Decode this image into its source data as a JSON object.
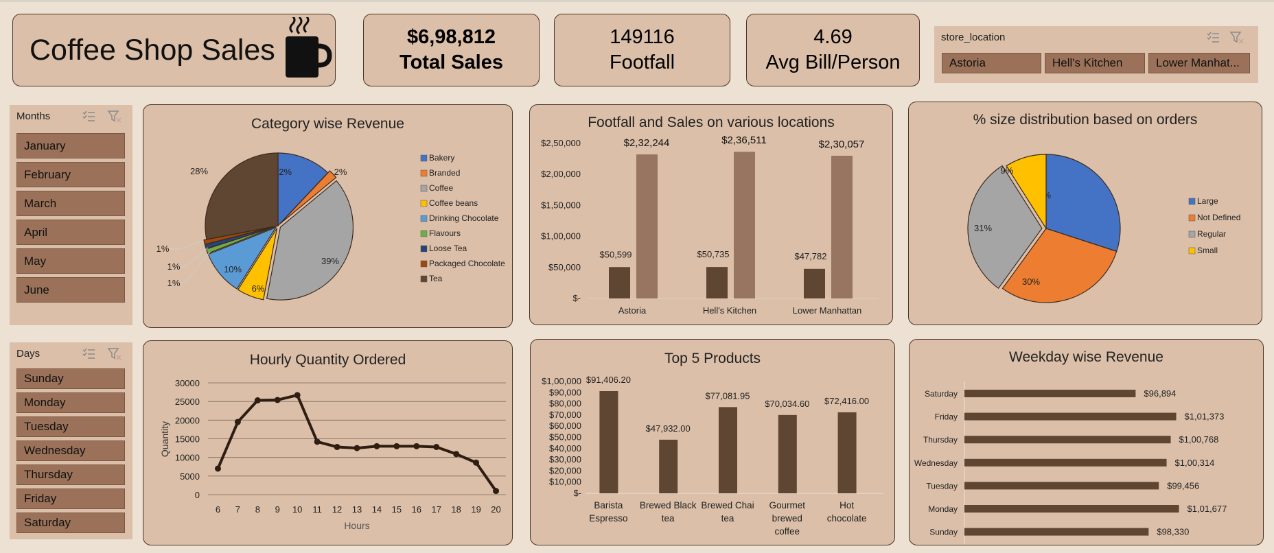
{
  "title_box": {
    "title": "Coffee Shop Sales"
  },
  "kpis": [
    {
      "value": "$6,98,812",
      "label": "Total Sales"
    },
    {
      "value": "149116",
      "label": "Footfall"
    },
    {
      "value": "4.69",
      "label": "Avg Bill/Person"
    }
  ],
  "store_slicer": {
    "title": "store_location",
    "items": [
      "Astoria",
      "Hell's Kitchen",
      "Lower Manhat..."
    ]
  },
  "months_slicer": {
    "title": "Months",
    "items": [
      "January",
      "February",
      "March",
      "April",
      "May",
      "June"
    ]
  },
  "days_slicer": {
    "title": "Days",
    "items": [
      "Sunday",
      "Monday",
      "Tuesday",
      "Wednesday",
      "Thursday",
      "Friday",
      "Saturday"
    ]
  },
  "colors": {
    "background": "#ece1d2",
    "panel": "#dbbfa8",
    "slicer_button": "#9b7259",
    "dark_bar": "#5f4632",
    "light_bar": "#977560",
    "line": "#2e1d10"
  },
  "chart_data": [
    {
      "type": "pie",
      "title": "Category wise Revenue",
      "categories": [
        "Bakery",
        "Branded",
        "Coffee",
        "Coffee beans",
        "Drinking Chocolate",
        "Flavours",
        "Loose Tea",
        "Packaged Chocolate",
        "Tea"
      ],
      "values": [
        12,
        2,
        39,
        6,
        10,
        1,
        1,
        1,
        28
      ],
      "labels": [
        "12%",
        "2%",
        "39%",
        "6%",
        "10%",
        "1%",
        "1%",
        "1%",
        "28%"
      ],
      "colors": [
        "#4472c4",
        "#ed7d31",
        "#a5a5a5",
        "#ffc000",
        "#5b9bd5",
        "#70ad47",
        "#264478",
        "#9e480e",
        "#5f4632"
      ],
      "legend": "right"
    },
    {
      "type": "bar",
      "title": "Footfall and Sales on various locations",
      "categories": [
        "Astoria",
        "Hell's Kitchen",
        "Lower Manhattan"
      ],
      "series": [
        {
          "values": [
            50599,
            50735,
            47782
          ],
          "labels": [
            "$50,599",
            "$50,735",
            "$47,782"
          ]
        },
        {
          "values": [
            232244,
            236511,
            230057
          ],
          "labels": [
            "$2,32,244",
            "$2,36,511",
            "$2,30,057"
          ]
        }
      ],
      "ylim": [
        0,
        250000
      ],
      "yticks": [
        "$2,50,000",
        "$2,00,000",
        "$1,50,000",
        "$1,00,000",
        "$50,000",
        "$-"
      ]
    },
    {
      "type": "pie",
      "title": "% size distribution based on orders",
      "categories": [
        "Large",
        "Not Defined",
        "Regular",
        "Small"
      ],
      "values": [
        30,
        30,
        31,
        9
      ],
      "labels": [
        "30%",
        "30%",
        "31%",
        "9%"
      ],
      "colors": [
        "#4472c4",
        "#ed7d31",
        "#a5a5a5",
        "#ffc000"
      ],
      "legend": "right"
    },
    {
      "type": "line",
      "title": "Hourly Quantity Ordered",
      "x": [
        6,
        7,
        8,
        9,
        10,
        11,
        12,
        13,
        14,
        15,
        16,
        17,
        18,
        19,
        20
      ],
      "y": [
        7000,
        19500,
        25300,
        25400,
        26700,
        14200,
        12800,
        12500,
        13000,
        13000,
        13000,
        12800,
        10900,
        8600,
        1000
      ],
      "xlabel": "Hours",
      "ylabel": "Quantity",
      "ylim": [
        0,
        30000
      ],
      "yticks": [
        "30000",
        "25000",
        "20000",
        "15000",
        "10000",
        "5000",
        "0"
      ],
      "grid": true
    },
    {
      "type": "bar",
      "title": "Top 5 Products",
      "categories": [
        [
          "Barista",
          "Espresso"
        ],
        [
          "Brewed Black",
          "tea"
        ],
        [
          "Brewed Chai",
          "tea"
        ],
        [
          "Gourmet",
          "brewed",
          "coffee"
        ],
        [
          "Hot",
          "chocolate"
        ]
      ],
      "values": [
        91406.2,
        47932.0,
        77081.95,
        70034.6,
        72416.0
      ],
      "labels": [
        "$91,406.20",
        "$47,932.00",
        "$77,081.95",
        "$70,034.60",
        "$72,416.00"
      ],
      "ylim": [
        0,
        100000
      ],
      "yticks": [
        "$1,00,000",
        "$90,000",
        "$80,000",
        "$70,000",
        "$60,000",
        "$50,000",
        "$40,000",
        "$30,000",
        "$20,000",
        "$10,000",
        "$-"
      ]
    },
    {
      "type": "bar",
      "orientation": "horizontal",
      "title": "Weekday wise Revenue",
      "categories": [
        "Saturday",
        "Friday",
        "Thursday",
        "Wednesday",
        "Tuesday",
        "Monday",
        "Sunday"
      ],
      "values": [
        96894,
        101373,
        100768,
        100314,
        99456,
        101677,
        98330
      ],
      "labels": [
        "$96,894",
        "$1,01,373",
        "$1,00,768",
        "$1,00,314",
        "$99,456",
        "$1,01,677",
        "$98,330"
      ],
      "xlim": [
        78000,
        103000
      ]
    }
  ]
}
